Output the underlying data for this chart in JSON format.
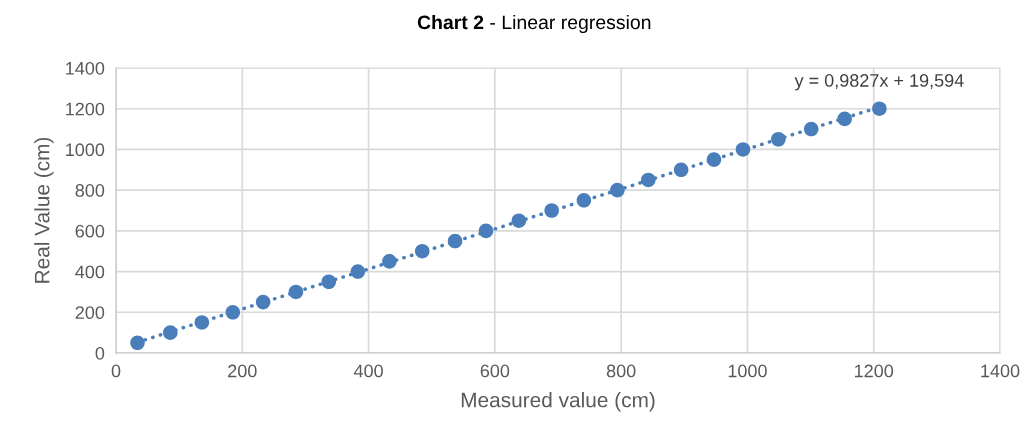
{
  "chart_data": {
    "type": "scatter",
    "title": "Chart 2",
    "subtitle": " - Linear regression",
    "xlabel": "Measured value (cm)",
    "ylabel": "Real Value (cm)",
    "x": [
      34,
      86,
      136,
      185,
      233,
      285,
      337,
      383,
      433,
      485,
      537,
      586,
      638,
      690,
      741,
      794,
      843,
      895,
      947,
      993,
      1049,
      1101,
      1154,
      1209
    ],
    "series": [
      {
        "color": "#4a7ebb",
        "marker": "circle",
        "values": [
          50,
          100,
          150,
          200,
          250,
          300,
          350,
          400,
          450,
          500,
          550,
          600,
          650,
          700,
          750,
          800,
          850,
          900,
          950,
          1000,
          1050,
          1100,
          1150,
          1200
        ]
      },
      {
        "type": "line",
        "color": "#4a7ebb",
        "line_style": "dotted",
        "marker": "none",
        "x": [
          34,
          1209
        ],
        "values": [
          53,
          1208
        ]
      }
    ],
    "annotations": [
      {
        "text": "y = 0,9827x + 19,594",
        "x": 1209,
        "y": 1208
      }
    ],
    "xlim": [
      0,
      1400
    ],
    "xticks": [
      0,
      200,
      400,
      600,
      800,
      1000,
      1200,
      1400
    ],
    "ylim": [
      0,
      1400
    ],
    "yticks": [
      0,
      200,
      400,
      600,
      800,
      1000,
      1200,
      1400
    ],
    "grid": true
  }
}
